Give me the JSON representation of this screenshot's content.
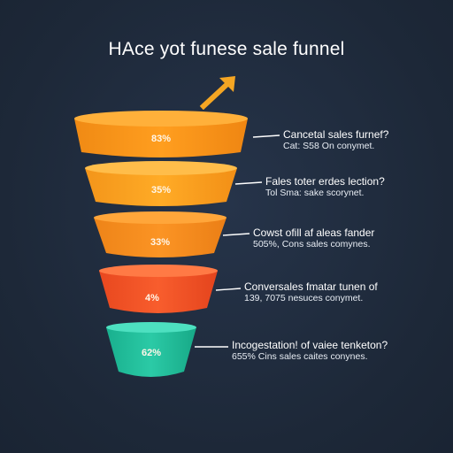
{
  "title": "HAce yot funese sale funnel",
  "colors": {
    "background": "#1f2b3d",
    "arrow": "#f5a623",
    "connector": "#ffffff"
  },
  "stages": [
    {
      "percent": "83%",
      "title": "Cancetal sales furnef?",
      "subtitle": "Cat: S58 On conymet.",
      "color_top": "#ffa51f",
      "color_body": "#f7921a",
      "color_dark": "#e07a10"
    },
    {
      "percent": "35%",
      "title": "Fales toter erdes lection?",
      "subtitle": "Tol Sma: sake scorynet.",
      "color_top": "#ffb12e",
      "color_body": "#f99a1c",
      "color_dark": "#e58412"
    },
    {
      "percent": "33%",
      "title": "Cowst ofill af aleas fander",
      "subtitle": "505%, Cons sales comynes.",
      "color_top": "#ff9a2a",
      "color_body": "#f68a1f",
      "color_dark": "#e27515"
    },
    {
      "percent": "4%",
      "title": "Conversales fmatar tunen of",
      "subtitle": "139, 7075 nesuces conymet.",
      "color_top": "#ff6a35",
      "color_body": "#f2552a",
      "color_dark": "#d8441f"
    },
    {
      "percent": "62%",
      "title": "Incogestation! of vaiee tenketon?",
      "subtitle": "655% Cins sales caites conynes.",
      "color_top": "#3fd6b4",
      "color_body": "#22c29e",
      "color_dark": "#17a886"
    }
  ]
}
